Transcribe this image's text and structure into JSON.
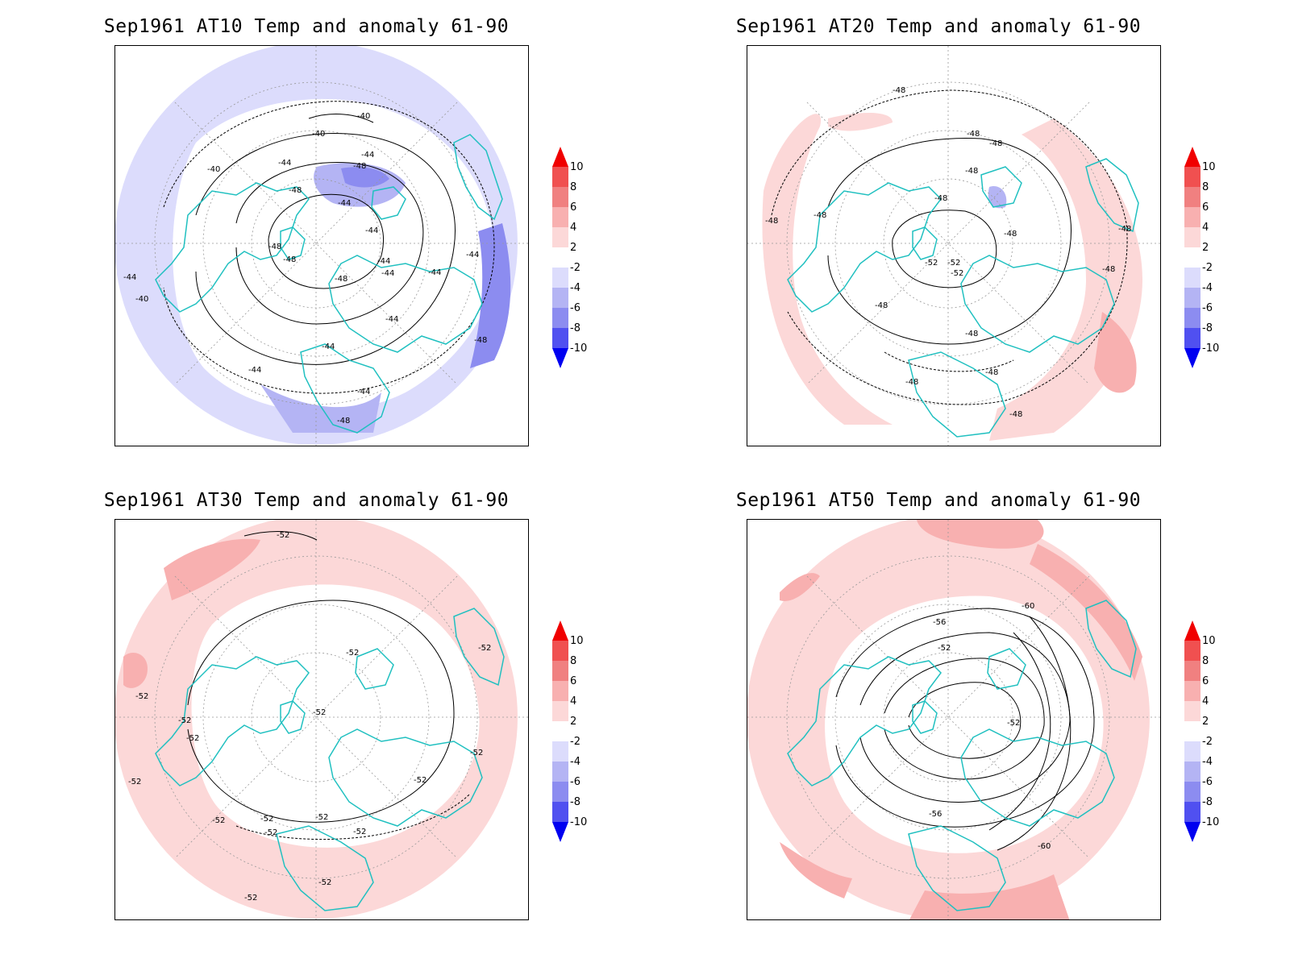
{
  "panels": [
    {
      "title": "Sep1961 AT10 Temp and anomaly 61-90",
      "contour_labels": [
        "-40",
        "-40",
        "-40",
        "-40",
        "-44",
        "-44",
        "-44",
        "-44",
        "-44",
        "-44",
        "-44",
        "-44",
        "-44",
        "-44",
        "-44",
        "-44",
        "-44",
        "-48",
        "-48",
        "-48",
        "-48",
        "-48",
        "-48",
        "-48"
      ],
      "anomaly": "negative"
    },
    {
      "title": "Sep1961 AT20 Temp and anomaly 61-90",
      "contour_labels": [
        "-48",
        "-48",
        "-48",
        "-48",
        "-48",
        "-48",
        "-48",
        "-48",
        "-48",
        "-48",
        "-48",
        "-48",
        "-48",
        "-48",
        "-48",
        "-52",
        "-52",
        "-52"
      ],
      "anomaly": "mild-positive"
    },
    {
      "title": "Sep1961 AT30 Temp and anomaly 61-90",
      "contour_labels": [
        "-52",
        "-52",
        "-52",
        "-52",
        "-52",
        "-52",
        "-52",
        "-52",
        "-52",
        "-52",
        "-52",
        "-52",
        "-52",
        "-52",
        "-52",
        "-52",
        "-52"
      ],
      "anomaly": "positive"
    },
    {
      "title": "Sep1961 AT50 Temp and anomaly 61-90",
      "contour_labels": [
        "-60",
        "-56",
        "-52",
        "-52",
        "-56",
        "-60"
      ],
      "anomaly": "positive"
    }
  ],
  "colorbar": {
    "labels": [
      "10",
      "8",
      "6",
      "4",
      "2",
      "-2",
      "-4",
      "-6",
      "-8",
      "-10"
    ],
    "colors": [
      "#f00000",
      "#f05050",
      "#f08080",
      "#f8b0b0",
      "#fcd8d8",
      "#ffffff",
      "#dcdcfc",
      "#b4b4f4",
      "#8c8cf0",
      "#5050f0",
      "#0000f0"
    ]
  },
  "colors": {
    "coast": "#20c0c0",
    "contour": "#000000",
    "pos1": "#fcd8d8",
    "pos2": "#f8b0b0",
    "neg1": "#dcdcfc",
    "neg2": "#b4b4f4",
    "neg3": "#8c8cf0"
  }
}
